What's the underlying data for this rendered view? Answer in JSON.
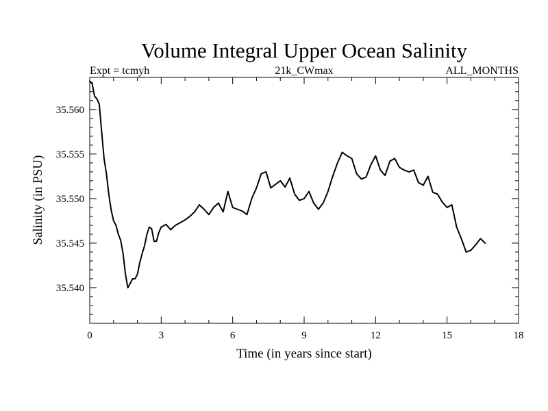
{
  "chart_data": {
    "type": "line",
    "title": "Volume Integral Upper Ocean Salinity",
    "subtitle_left": "Expt = tcmyh",
    "subtitle_center": "21k_CWmax",
    "subtitle_right": "ALL_MONTHS",
    "xlabel": "Time (in years since start)",
    "ylabel": "Salinity (in PSU)",
    "xlim": [
      0,
      18
    ],
    "ylim": [
      35.536,
      35.5636
    ],
    "xticks": [
      0,
      3,
      6,
      9,
      12,
      15,
      18
    ],
    "xtick_labels": [
      "0",
      "3",
      "6",
      "9",
      "12",
      "15",
      "18"
    ],
    "yticks": [
      35.54,
      35.545,
      35.55,
      35.555,
      35.56
    ],
    "ytick_labels": [
      "35.540",
      "35.545",
      "35.550",
      "35.555",
      "35.560"
    ],
    "grid": false,
    "legend": "none",
    "line_color": "#000000",
    "series": [
      {
        "name": "Salinity",
        "x": [
          0.0,
          0.1,
          0.2,
          0.3,
          0.4,
          0.5,
          0.6,
          0.7,
          0.8,
          0.9,
          1.0,
          1.1,
          1.2,
          1.3,
          1.4,
          1.5,
          1.6,
          1.7,
          1.8,
          1.9,
          2.0,
          2.1,
          2.2,
          2.3,
          2.4,
          2.5,
          2.6,
          2.7,
          2.8,
          2.9,
          3.0,
          3.2,
          3.4,
          3.6,
          3.8,
          4.0,
          4.2,
          4.4,
          4.6,
          4.8,
          5.0,
          5.2,
          5.4,
          5.6,
          5.8,
          6.0,
          6.2,
          6.4,
          6.6,
          6.8,
          7.0,
          7.2,
          7.4,
          7.6,
          7.8,
          8.0,
          8.2,
          8.4,
          8.6,
          8.8,
          9.0,
          9.2,
          9.4,
          9.6,
          9.8,
          10.0,
          10.2,
          10.4,
          10.6,
          10.8,
          11.0,
          11.2,
          11.4,
          11.6,
          11.8,
          12.0,
          12.2,
          12.4,
          12.6,
          12.8,
          13.0,
          13.2,
          13.4,
          13.6,
          13.8,
          14.0,
          14.2,
          14.4,
          14.6,
          14.8,
          15.0,
          15.2,
          15.4,
          15.6,
          15.8,
          16.0,
          16.2,
          16.4,
          16.6
        ],
        "y": [
          35.5632,
          35.5629,
          35.5615,
          35.5612,
          35.5606,
          35.5575,
          35.5545,
          35.5528,
          35.5505,
          35.5487,
          35.5475,
          35.547,
          35.546,
          35.5453,
          35.5438,
          35.5415,
          35.54,
          35.5405,
          35.541,
          35.541,
          35.5415,
          35.5428,
          35.5438,
          35.5447,
          35.546,
          35.5468,
          35.5466,
          35.5452,
          35.5452,
          35.5462,
          35.5468,
          35.5471,
          35.5465,
          35.547,
          35.5473,
          35.5476,
          35.548,
          35.5485,
          35.5493,
          35.5488,
          35.5482,
          35.549,
          35.5495,
          35.5485,
          35.5508,
          35.549,
          35.5488,
          35.5486,
          35.5482,
          35.55,
          35.5512,
          35.5528,
          35.553,
          35.5512,
          35.5516,
          35.552,
          35.5513,
          35.5523,
          35.5505,
          35.5498,
          35.55,
          35.5508,
          35.5495,
          35.5488,
          35.5495,
          35.5508,
          35.5525,
          35.554,
          35.5552,
          35.5548,
          35.5545,
          35.5528,
          35.5522,
          35.5524,
          35.5538,
          35.5548,
          35.5532,
          35.5526,
          35.5542,
          35.5545,
          35.5535,
          35.5532,
          35.553,
          35.5532,
          35.5518,
          35.5515,
          35.5525,
          35.5507,
          35.5505,
          35.5496,
          35.549,
          35.5493,
          35.5468,
          35.5455,
          35.544,
          35.5442,
          35.5448,
          35.5455,
          35.545
        ]
      }
    ]
  }
}
